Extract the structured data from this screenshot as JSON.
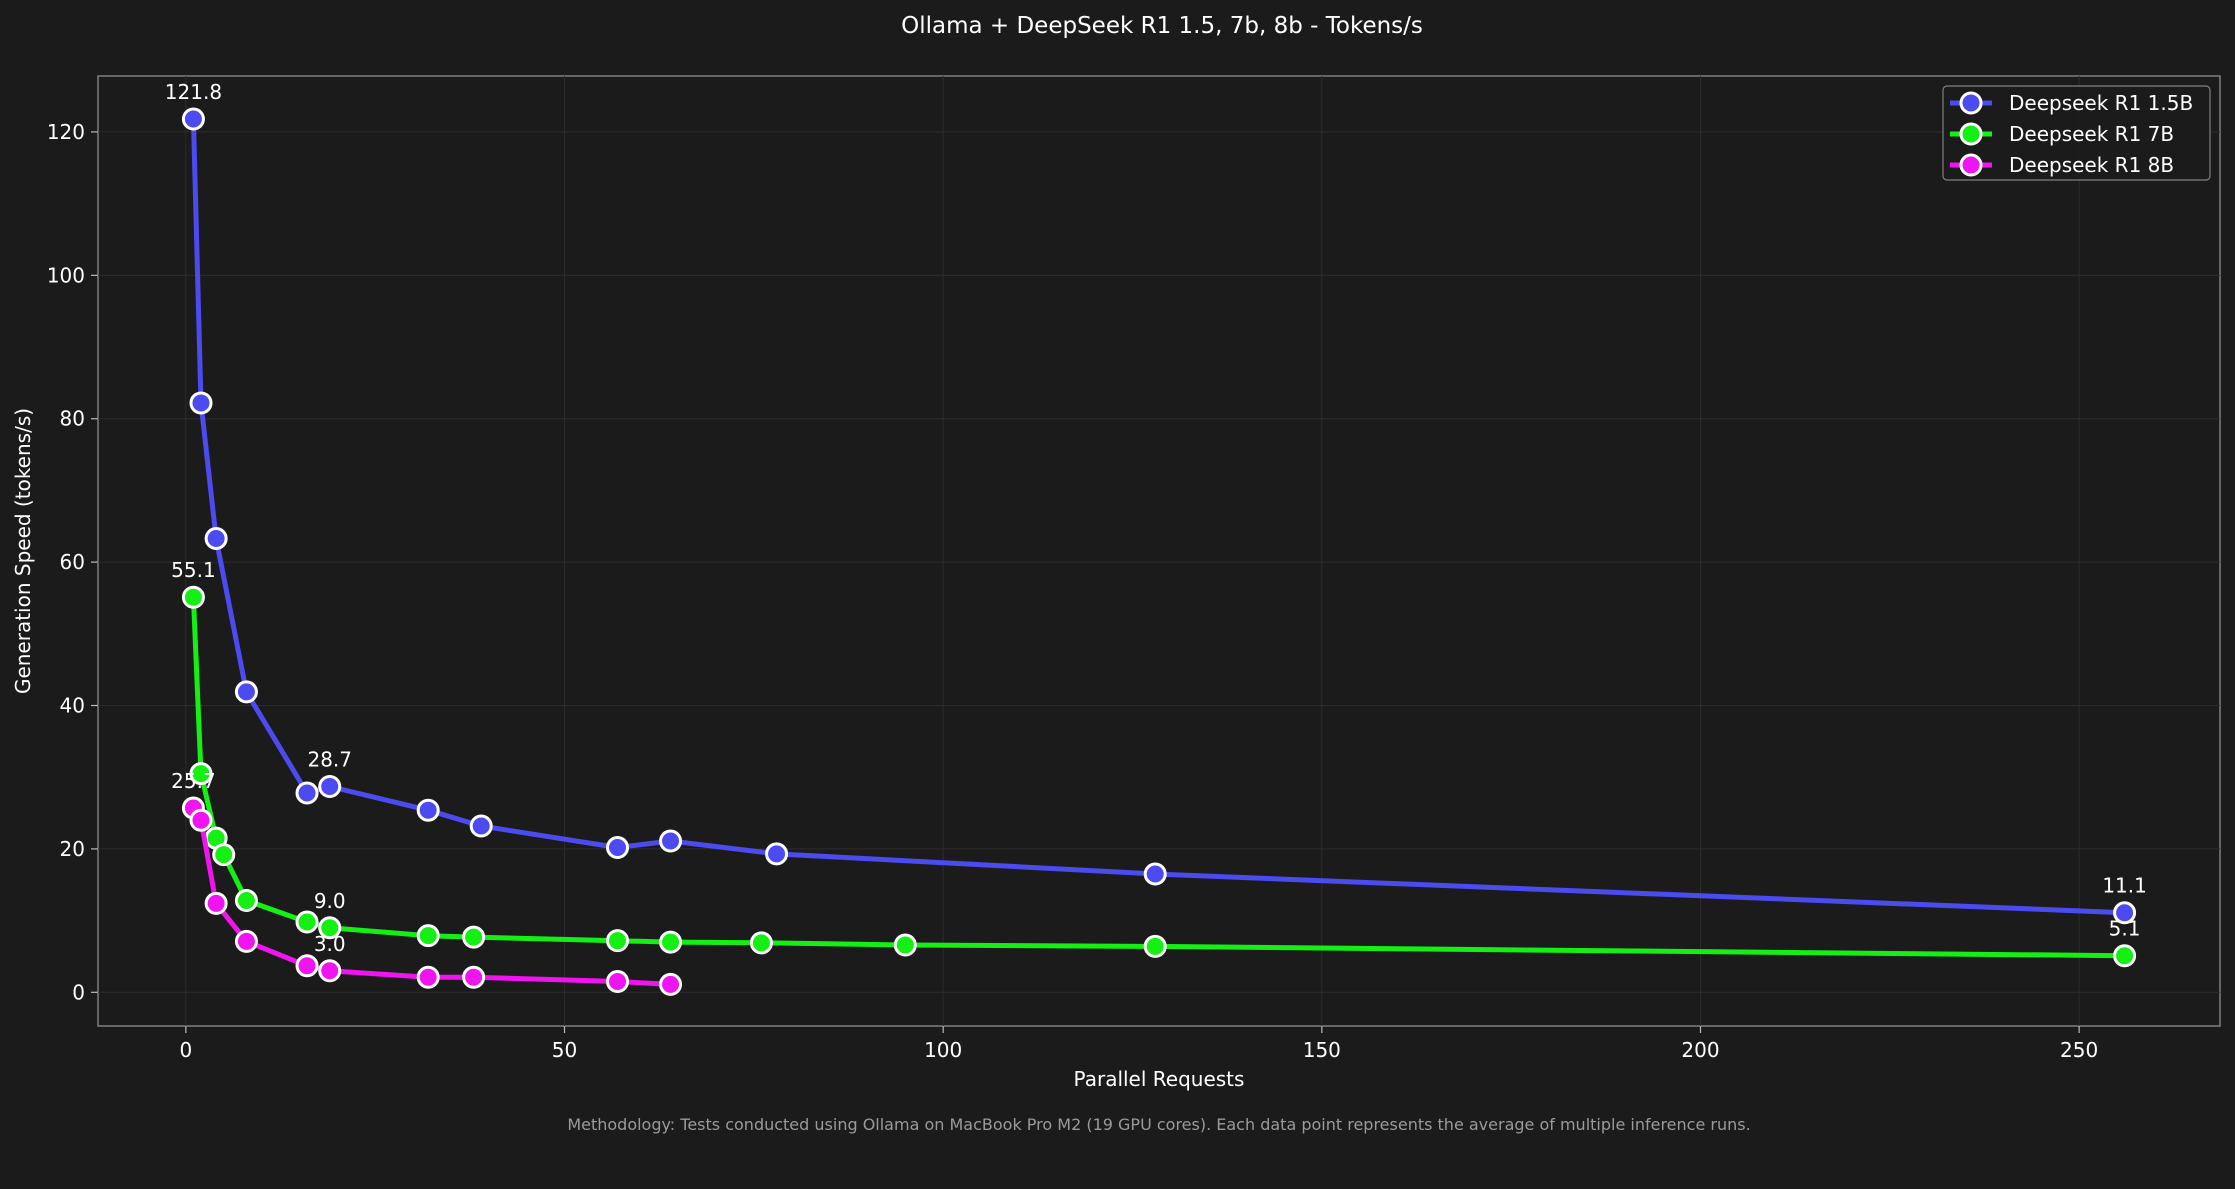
{
  "chart_data": {
    "type": "line",
    "title": "Ollama + DeepSeek R1 1.5, 7b, 8b - Tokens/s",
    "xlabel": "Parallel Requests",
    "ylabel": "Generation Speed (tokens/s)",
    "xlim": [
      -11.6,
      268.6
    ],
    "ylim": [
      -4.7,
      127.8
    ],
    "xticks": [
      0,
      50,
      100,
      150,
      200,
      250
    ],
    "yticks": [
      0,
      20,
      40,
      60,
      80,
      100,
      120
    ],
    "grid": true,
    "legend_position": "top-right",
    "footnote": "Methodology: Tests conducted using Ollama on MacBook Pro M2 (19 GPU cores). Each data point represents the average of multiple inference runs.",
    "series": [
      {
        "name": "Deepseek R1 1.5B",
        "color": "#4b4bf0",
        "x": [
          1,
          2,
          4,
          8,
          16,
          19,
          32,
          39,
          57,
          64,
          78,
          128,
          256
        ],
        "y": [
          121.8,
          82.2,
          63.3,
          41.9,
          27.8,
          28.7,
          25.4,
          23.2,
          20.2,
          21.1,
          19.3,
          16.5,
          11.1
        ],
        "labels": [
          {
            "x": 1,
            "y": 121.8,
            "text": "121.8"
          },
          {
            "x": 19,
            "y": 28.7,
            "text": "28.7"
          },
          {
            "x": 256,
            "y": 11.1,
            "text": "11.1"
          }
        ]
      },
      {
        "name": "Deepseek R1 7B",
        "color": "#14f014",
        "x": [
          1,
          2,
          4,
          5,
          8,
          16,
          19,
          32,
          38,
          57,
          64,
          76,
          95,
          128,
          256
        ],
        "y": [
          55.1,
          30.5,
          21.5,
          19.2,
          12.8,
          9.8,
          9.0,
          7.9,
          7.7,
          7.2,
          7.0,
          6.9,
          6.6,
          6.4,
          5.1
        ],
        "labels": [
          {
            "x": 1,
            "y": 55.1,
            "text": "55.1"
          },
          {
            "x": 19,
            "y": 9.0,
            "text": "9.0"
          },
          {
            "x": 256,
            "y": 5.1,
            "text": "5.1"
          }
        ]
      },
      {
        "name": "Deepseek R1 8B",
        "color": "#f014f0",
        "x": [
          1,
          2,
          4,
          8,
          16,
          19,
          32,
          38,
          57,
          64
        ],
        "y": [
          25.7,
          24.0,
          12.4,
          7.1,
          3.7,
          3.0,
          2.1,
          2.1,
          1.5,
          1.1
        ],
        "labels": [
          {
            "x": 1,
            "y": 25.7,
            "text": "25.7"
          },
          {
            "x": 19,
            "y": 3.0,
            "text": "3.0"
          }
        ]
      }
    ]
  }
}
